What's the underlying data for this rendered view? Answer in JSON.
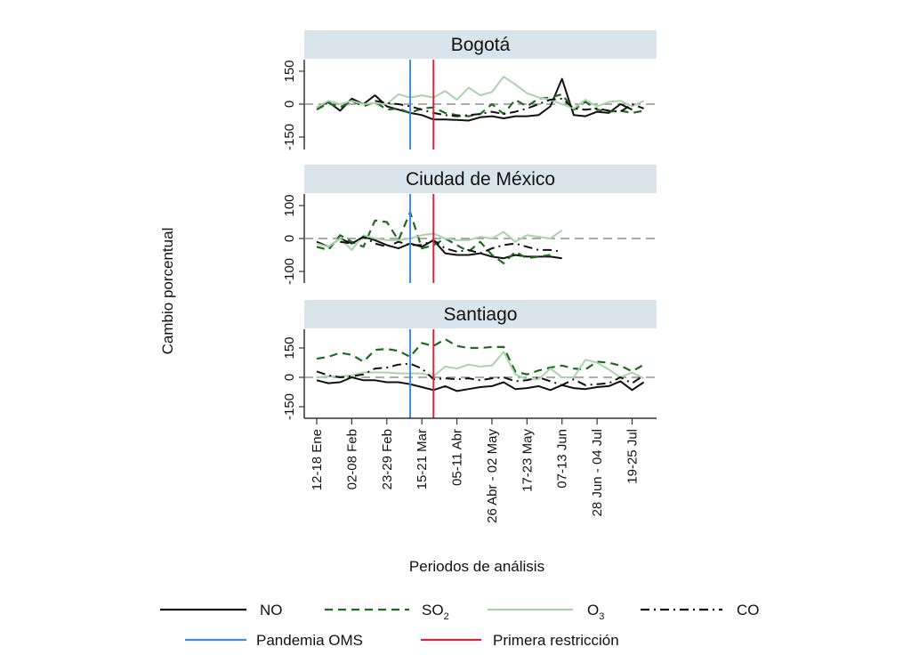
{
  "chart_data": {
    "type": "line",
    "ylabel": "Cambio porcentual",
    "xlabel": "Periodos de análisis",
    "x_tick_labels": [
      "12-18 Ene",
      "02-08 Feb",
      "23-29 Feb",
      "15-21 Mar",
      "05-11 Abr",
      "26 Abr - 02 May",
      "17-23 May",
      "07-13 Jun",
      "28 Jun - 04 Jul",
      "19-25 Jul"
    ],
    "x_tick_week_index": [
      0,
      3,
      6,
      9,
      12,
      15,
      18,
      21,
      24,
      27
    ],
    "week_count": 29,
    "reference_lines": [
      {
        "name": "Pandemia OMS",
        "week_index": 8,
        "color": "#3c8dde"
      },
      {
        "name": "Primera restricción",
        "week_index": 10,
        "color": "#d0283c"
      }
    ],
    "zero_line": {
      "y": 0,
      "style": "dashed",
      "color": "#808080"
    },
    "series_styles": [
      {
        "key": "NO",
        "name": "NO",
        "color": "#111111",
        "dash": "solid"
      },
      {
        "key": "SO2",
        "name": "SO",
        "subscript": "2",
        "color": "#1e6b1e",
        "dash": "dashed"
      },
      {
        "key": "O3",
        "name": "O",
        "subscript": "3",
        "color": "#a9d4a9",
        "dash": "solid"
      },
      {
        "key": "CO",
        "name": "CO",
        "color": "#111111",
        "dash": "dashdot"
      }
    ],
    "panels": [
      {
        "title": "Bogotá",
        "ylim": [
          -200,
          200
        ],
        "yticks": [
          -150,
          0,
          150
        ],
        "series": {
          "NO": [
            -15,
            10,
            -30,
            25,
            0,
            40,
            -10,
            -25,
            -40,
            -50,
            -70,
            -70,
            -72,
            -75,
            -60,
            -55,
            -65,
            -55,
            -55,
            -50,
            -10,
            115,
            -50,
            -55,
            -35,
            -40,
            0,
            -25,
            null
          ],
          "SO2": [
            -25,
            5,
            -15,
            15,
            -10,
            10,
            -25,
            -20,
            -40,
            -20,
            -15,
            -40,
            -50,
            -55,
            -45,
            0,
            -45,
            20,
            -10,
            25,
            30,
            45,
            -25,
            10,
            -25,
            -35,
            -30,
            -40,
            -30
          ],
          "O3": [
            -15,
            15,
            0,
            15,
            0,
            5,
            0,
            45,
            30,
            40,
            30,
            60,
            20,
            75,
            40,
            55,
            125,
            90,
            50,
            30,
            20,
            0,
            -20,
            20,
            -10,
            10,
            15,
            -10,
            15
          ],
          "CO": [
            null,
            null,
            null,
            null,
            null,
            15,
            5,
            0,
            -10,
            -25,
            -40,
            -50,
            -55,
            -50,
            -45,
            -35,
            -45,
            -35,
            -20,
            0,
            20,
            25,
            -20,
            -25,
            -20,
            -30,
            -35,
            0,
            -20
          ]
        }
      },
      {
        "title": "Ciudad de México",
        "ylim": [
          -135,
          135
        ],
        "yticks": [
          -100,
          0,
          100
        ],
        "series": {
          "NO": [
            -10,
            -25,
            0,
            -15,
            5,
            -5,
            -20,
            -30,
            -15,
            -25,
            -5,
            -45,
            -50,
            -50,
            -45,
            -55,
            -60,
            -50,
            -55,
            -55,
            -55,
            -60,
            null,
            null,
            null,
            null,
            null,
            null,
            null
          ],
          "SO2": [
            -25,
            -35,
            10,
            -10,
            -25,
            55,
            50,
            -5,
            80,
            -30,
            -20,
            0,
            -20,
            -40,
            -10,
            -50,
            -75,
            -40,
            -60,
            -55,
            -50,
            null,
            null,
            null,
            null,
            null,
            null,
            null,
            null
          ],
          "O3": [
            -15,
            -25,
            0,
            -35,
            10,
            0,
            -5,
            -5,
            0,
            10,
            15,
            0,
            -5,
            -5,
            5,
            0,
            20,
            -10,
            10,
            5,
            0,
            25,
            null,
            null,
            null,
            null,
            null,
            null,
            null
          ],
          "CO": [
            null,
            null,
            -10,
            -15,
            5,
            -15,
            -25,
            -10,
            -20,
            -20,
            -5,
            -30,
            -40,
            -35,
            -45,
            -30,
            -20,
            -15,
            -25,
            -35,
            -35,
            -40,
            null,
            null,
            null,
            null,
            null,
            null,
            null
          ]
        }
      },
      {
        "title": "Santiago",
        "ylim": [
          -200,
          210
        ],
        "yticks": [
          -150,
          0,
          150
        ],
        "series": {
          "NO": [
            -15,
            -30,
            -25,
            0,
            -15,
            -15,
            -25,
            -25,
            -35,
            -50,
            -65,
            -45,
            -70,
            -60,
            -50,
            -45,
            -25,
            -60,
            -55,
            -45,
            -65,
            -40,
            -55,
            -60,
            -50,
            -45,
            -20,
            -65,
            -25
          ],
          "SO2": [
            95,
            105,
            125,
            115,
            80,
            140,
            145,
            135,
            105,
            175,
            160,
            195,
            160,
            150,
            150,
            155,
            155,
            30,
            15,
            35,
            50,
            60,
            45,
            40,
            80,
            75,
            60,
            30,
            65
          ],
          "O3": [
            0,
            5,
            5,
            10,
            25,
            25,
            25,
            20,
            20,
            20,
            5,
            55,
            45,
            65,
            55,
            60,
            130,
            15,
            -10,
            -10,
            45,
            0,
            0,
            90,
            75,
            40,
            0,
            25,
            -5
          ],
          "CO": [
            30,
            10,
            0,
            5,
            15,
            45,
            50,
            65,
            70,
            45,
            -10,
            -5,
            -10,
            -5,
            -15,
            -5,
            0,
            -20,
            -15,
            0,
            -20,
            -40,
            -10,
            -40,
            -35,
            -30,
            0,
            -30,
            10
          ]
        }
      }
    ],
    "legend": {
      "placement": "bottom",
      "entries": [
        {
          "label": "NO",
          "sub": ""
        },
        {
          "label": "SO",
          "sub": "2"
        },
        {
          "label": "O",
          "sub": "3"
        },
        {
          "label": "CO",
          "sub": ""
        },
        {
          "label": "Pandemia OMS",
          "sub": ""
        },
        {
          "label": "Primera restricción",
          "sub": ""
        }
      ]
    }
  }
}
